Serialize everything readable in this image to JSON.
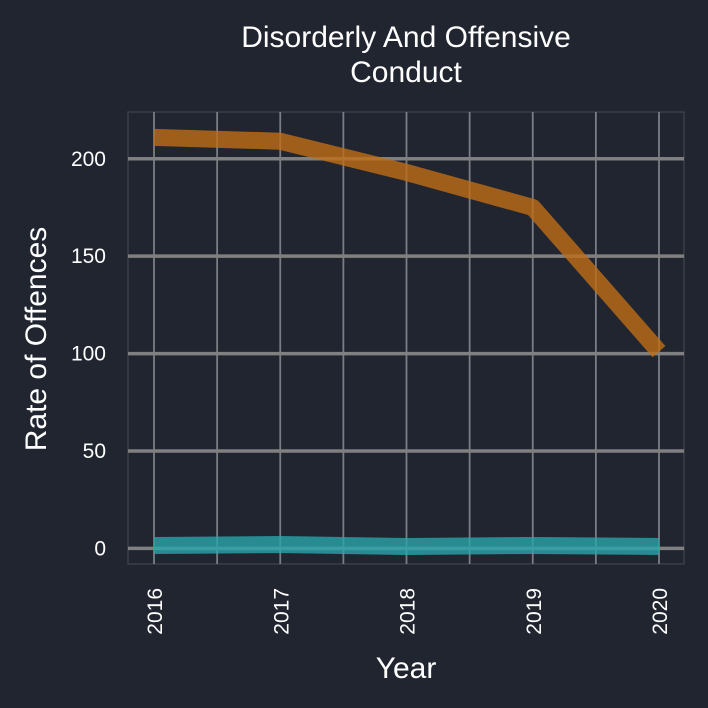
{
  "chart_data": {
    "type": "line",
    "title": [
      "Disorderly And Offensive",
      "Conduct"
    ],
    "xlabel": "Year",
    "ylabel": "Rate of Offences",
    "x": [
      "2016",
      "2017",
      "2018",
      "2019",
      "2020"
    ],
    "yticks": [
      "0",
      "50",
      "100",
      "150",
      "200"
    ],
    "ylim": [
      -8,
      224
    ],
    "grid": true,
    "legend": "none",
    "series": [
      {
        "values": [
          211,
          209,
          193,
          175,
          101
        ],
        "color": "#bf6e16"
      },
      {
        "values": [
          1.5,
          2,
          1,
          1.5,
          1
        ],
        "color": "#2aa5ab"
      }
    ],
    "colors": {
      "background": "#212530",
      "panel_border": "#3a3e48",
      "major_grid": "#808080",
      "minor_grid": "#7a7d84"
    }
  }
}
